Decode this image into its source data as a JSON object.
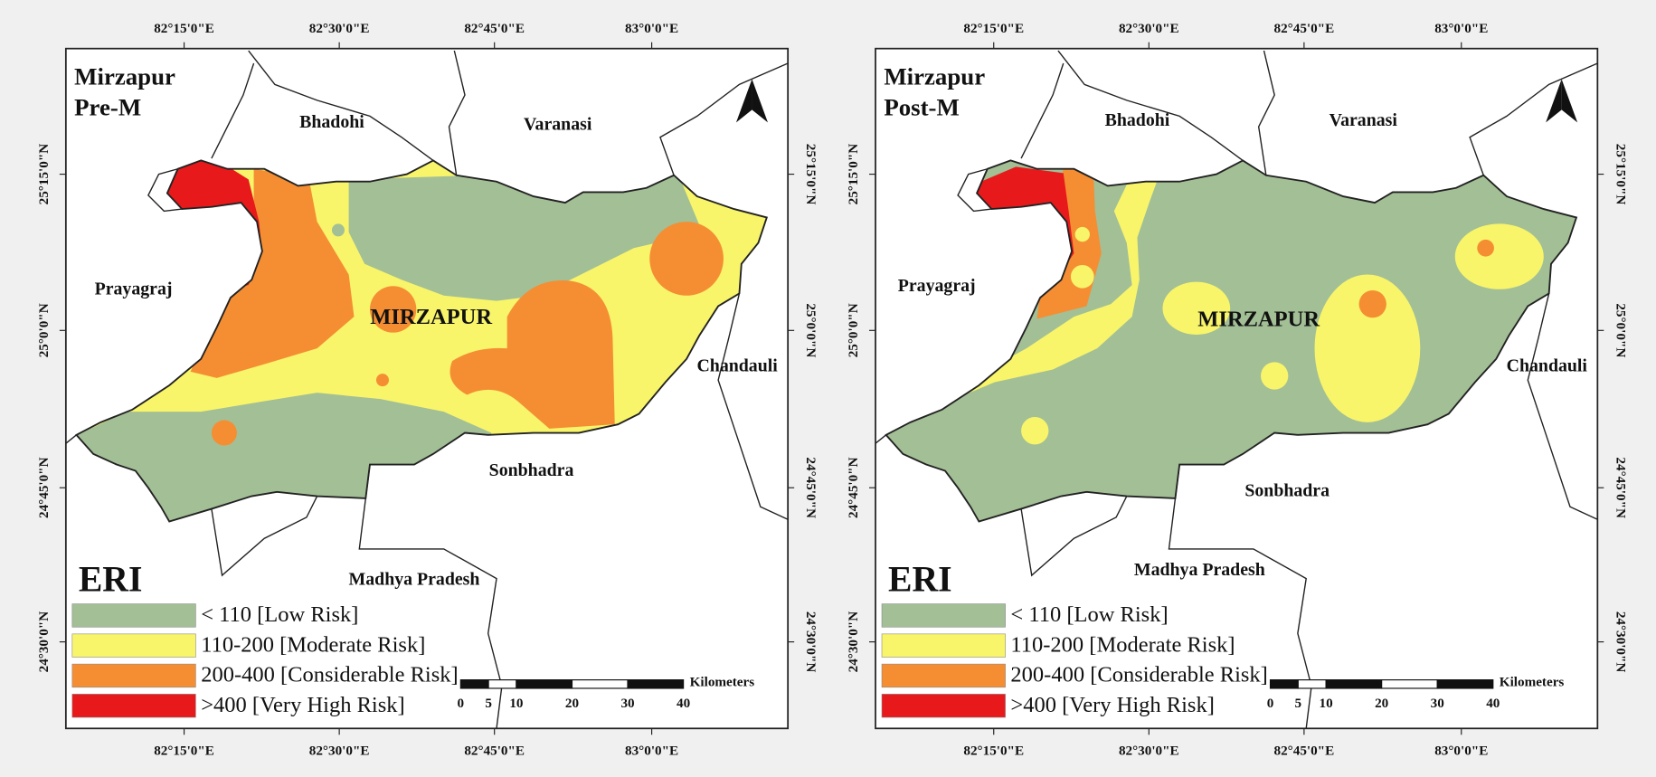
{
  "panels": [
    {
      "title": "Mirzapur",
      "subtitle": "Pre-M"
    },
    {
      "title": "Mirzapur",
      "subtitle": "Post-M"
    }
  ],
  "regions": {
    "district": "MIRZAPUR",
    "neighbors": [
      "Bhadohi",
      "Varanasi",
      "Prayagraj",
      "Chandauli",
      "Sonbhadra",
      "Madhya Pradesh"
    ]
  },
  "graticule": {
    "longitudes": [
      "82°15'0\"E",
      "82°30'0\"E",
      "82°45'0\"E",
      "83°0'0\"E"
    ],
    "latitudes": [
      "25°15'0\"N",
      "25°0'0\"N",
      "24°45'0\"N",
      "24°30'0\"N"
    ]
  },
  "legend": {
    "title": "ERI",
    "items": [
      {
        "label": "< 110 [Low Risk]",
        "color": "#a3bf96"
      },
      {
        "label": "110-200  [Moderate Risk]",
        "color": "#f8f56a"
      },
      {
        "label": "200-400  [Considerable Risk]",
        "color": "#f58e33"
      },
      {
        "label": ">400 [Very High Risk]",
        "color": "#e8191b"
      }
    ]
  },
  "scale_bar": {
    "unit": "Kilometers",
    "ticks": [
      0,
      5,
      10,
      20,
      30,
      40
    ]
  }
}
